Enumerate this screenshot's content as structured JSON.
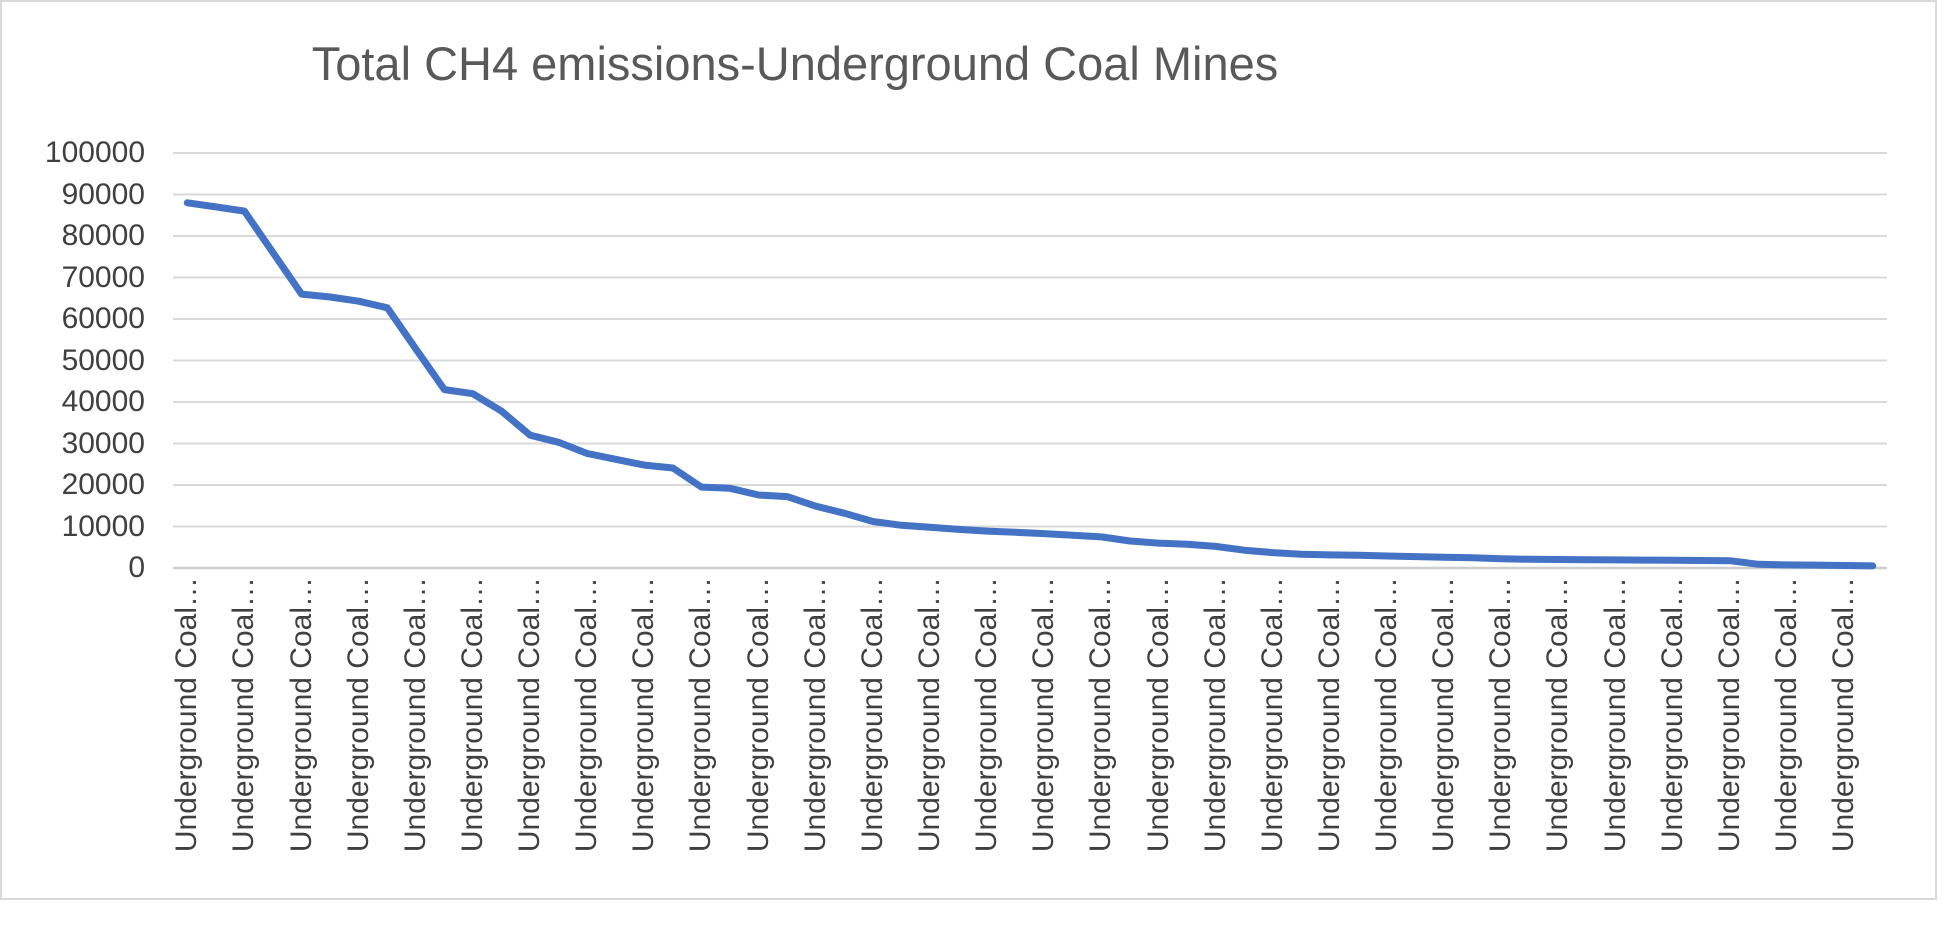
{
  "chart": {
    "title": "Total CH4 emissions-Underground Coal Mines",
    "y_axis": {
      "ticks": [
        "0",
        "10000",
        "20000",
        "30000",
        "40000",
        "50000",
        "60000",
        "70000",
        "80000",
        "90000",
        "100000"
      ]
    },
    "x_axis": {
      "labels": [
        "Underground Coal…",
        "Underground Coal…",
        "Underground Coal…",
        "Underground Coal…",
        "Underground Coal…",
        "Underground Coal…",
        "Underground Coal…",
        "Underground Coal…",
        "Underground Coal…",
        "Underground Coal…",
        "Underground Coal…",
        "Underground Coal…",
        "Underground Coal…",
        "Underground Coal…",
        "Underground Coal…",
        "Underground Coal…",
        "Underground Coal…",
        "Underground Coal…",
        "Underground Coal…",
        "Underground Coal…",
        "Underground Coal…",
        "Underground Coal…",
        "Underground Coal…",
        "Underground Coal…",
        "Underground Coal…",
        "Underground Coal…",
        "Underground Coal…",
        "Underground Coal…",
        "Underground Coal…",
        "Underground Coal…"
      ]
    },
    "colors": {
      "series_line": "#4472C4",
      "gridline": "#D9D9D9",
      "axis_line": "#CDCDCD",
      "frame_border": "#D9D9D9",
      "title_text": "#595959",
      "tick_text": "#404040"
    }
  },
  "chart_data": {
    "type": "line",
    "title": "Total CH4 emissions-Underground Coal Mines",
    "xlabel": "",
    "ylabel": "",
    "ylim": [
      0,
      100000
    ],
    "y_tick_step": 10000,
    "grid": true,
    "legend": false,
    "x_category_label_visible": "Underground Coal…",
    "x_label_interval": 2,
    "n_points": 60,
    "values": [
      88000,
      87000,
      86000,
      76000,
      66000,
      65300,
      64300,
      62700,
      52800,
      43000,
      42000,
      37800,
      32000,
      30300,
      27600,
      26200,
      24800,
      24100,
      19500,
      19200,
      17600,
      17200,
      14900,
      13200,
      11200,
      10300,
      9800,
      9300,
      8900,
      8600,
      8300,
      7900,
      7500,
      6500,
      6000,
      5700,
      5200,
      4300,
      3700,
      3300,
      3150,
      3050,
      2900,
      2750,
      2600,
      2450,
      2250,
      2100,
      2050,
      2000,
      1950,
      1900,
      1850,
      1800,
      1770,
      900,
      750,
      700,
      600,
      500
    ]
  }
}
